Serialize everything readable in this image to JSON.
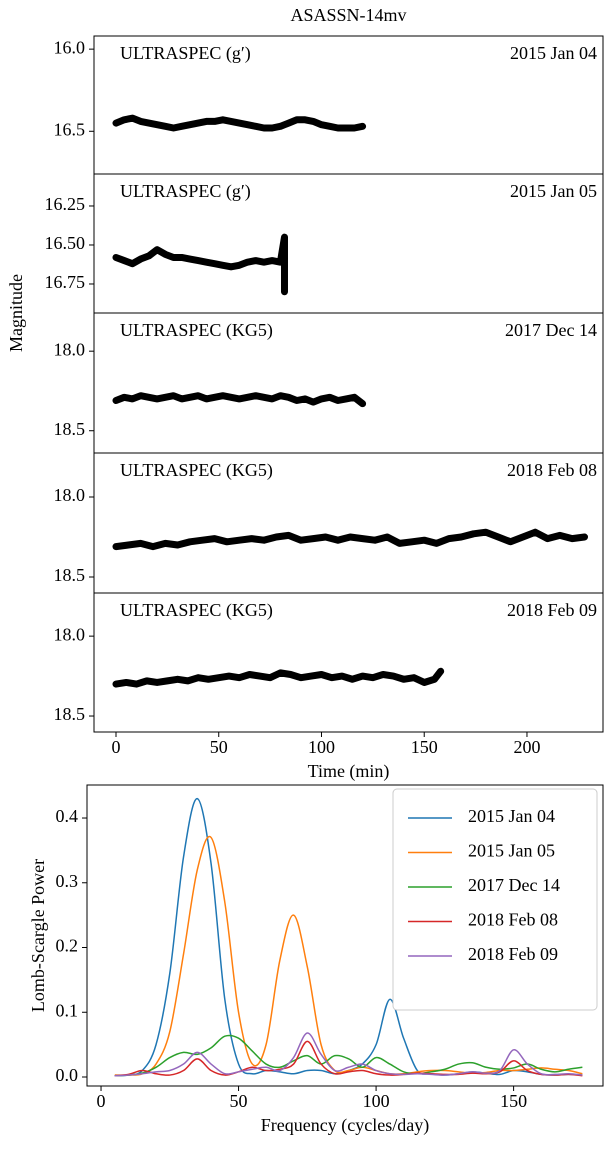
{
  "chart_data": [
    {
      "type": "scatter",
      "title": "ASASSN-14mv",
      "label": "ULTRASPEC (g′)",
      "date": "2015 Jan 04",
      "color": "#000000",
      "x": [
        0,
        4,
        8,
        12,
        16,
        20,
        24,
        28,
        32,
        36,
        40,
        44,
        48,
        52,
        56,
        60,
        64,
        68,
        72,
        76,
        80,
        84,
        88,
        92,
        96,
        100,
        104,
        108,
        112,
        116,
        120
      ],
      "values": [
        16.45,
        16.43,
        16.42,
        16.44,
        16.45,
        16.46,
        16.47,
        16.48,
        16.47,
        16.46,
        16.45,
        16.44,
        16.44,
        16.43,
        16.44,
        16.45,
        16.46,
        16.47,
        16.48,
        16.48,
        16.47,
        16.45,
        16.43,
        16.43,
        16.44,
        16.46,
        16.47,
        16.48,
        16.48,
        16.48,
        16.47
      ],
      "xlim": [
        -10.7,
        237
      ],
      "ylim": [
        16.76,
        15.92
      ],
      "yticks": [
        {
          "value": 16,
          "label": "16.0"
        },
        16.5
      ]
    },
    {
      "type": "scatter",
      "label": "ULTRASPEC (g′)",
      "date": "2015 Jan 05",
      "color": "#000000",
      "x": [
        0,
        4,
        8,
        12,
        16,
        20,
        24,
        28,
        32,
        36,
        40,
        44,
        48,
        52,
        56,
        60,
        64,
        68,
        72,
        76,
        80,
        82,
        82
      ],
      "values": [
        16.58,
        16.6,
        16.62,
        16.59,
        16.57,
        16.53,
        16.56,
        16.58,
        16.58,
        16.59,
        16.6,
        16.61,
        16.62,
        16.63,
        16.64,
        16.63,
        16.61,
        16.6,
        16.61,
        16.6,
        16.61,
        16.45,
        16.8
      ],
      "xlim": [
        -10.7,
        237
      ],
      "ylim": [
        16.936,
        16.045
      ],
      "yticks": [
        16.25,
        {
          "value": 16.5,
          "label": "16.50"
        },
        16.75
      ]
    },
    {
      "type": "scatter",
      "label": "ULTRASPEC (KG5)",
      "date": "2017 Dec 14",
      "color": "#000000",
      "y_label": "Magnitude",
      "x": [
        0,
        4,
        8,
        12,
        16,
        20,
        24,
        28,
        32,
        36,
        40,
        44,
        48,
        52,
        56,
        60,
        64,
        68,
        72,
        76,
        80,
        84,
        88,
        92,
        96,
        100,
        104,
        108,
        112,
        116,
        120
      ],
      "values": [
        18.31,
        18.29,
        18.3,
        18.28,
        18.29,
        18.3,
        18.29,
        18.28,
        18.3,
        18.29,
        18.28,
        18.3,
        18.29,
        18.28,
        18.29,
        18.3,
        18.29,
        18.28,
        18.29,
        18.3,
        18.28,
        18.29,
        18.31,
        18.3,
        18.32,
        18.3,
        18.29,
        18.31,
        18.3,
        18.29,
        18.33
      ],
      "xlim": [
        -10.7,
        237
      ],
      "ylim": [
        18.64,
        17.76
      ],
      "yticks": [
        {
          "value": 18,
          "label": "18.0"
        },
        18.5
      ]
    },
    {
      "type": "scatter",
      "label": "ULTRASPEC (KG5)",
      "date": "2018 Feb 08",
      "color": "#000000",
      "x": [
        0,
        6,
        12,
        18,
        24,
        30,
        36,
        42,
        48,
        54,
        60,
        66,
        72,
        78,
        84,
        90,
        96,
        102,
        108,
        114,
        120,
        126,
        132,
        138,
        144,
        150,
        156,
        162,
        168,
        174,
        180,
        186,
        192,
        198,
        204,
        210,
        216,
        222,
        228
      ],
      "values": [
        18.31,
        18.3,
        18.29,
        18.31,
        18.29,
        18.3,
        18.28,
        18.27,
        18.26,
        18.28,
        18.27,
        18.26,
        18.27,
        18.25,
        18.24,
        18.27,
        18.26,
        18.25,
        18.27,
        18.25,
        18.26,
        18.27,
        18.25,
        18.29,
        18.28,
        18.27,
        18.29,
        18.26,
        18.25,
        18.23,
        18.22,
        18.25,
        18.28,
        18.25,
        18.22,
        18.26,
        18.24,
        18.26,
        18.25
      ],
      "xlim": [
        -10.7,
        237
      ],
      "ylim": [
        18.6,
        17.725
      ],
      "yticks": [
        {
          "value": 18,
          "label": "18.0"
        },
        18.5
      ]
    },
    {
      "type": "scatter",
      "label": "ULTRASPEC (KG5)",
      "date": "2018 Feb 09",
      "color": "#000000",
      "x_label": "Time (min)",
      "xticks": [
        0,
        50,
        100,
        150,
        200
      ],
      "x": [
        0,
        5,
        10,
        15,
        20,
        25,
        30,
        35,
        40,
        45,
        50,
        55,
        60,
        65,
        70,
        75,
        80,
        85,
        90,
        95,
        100,
        105,
        110,
        115,
        120,
        125,
        130,
        135,
        140,
        145,
        150,
        155,
        158
      ],
      "values": [
        18.3,
        18.29,
        18.3,
        18.28,
        18.29,
        18.28,
        18.27,
        18.28,
        18.26,
        18.27,
        18.26,
        18.25,
        18.26,
        18.24,
        18.25,
        18.26,
        18.23,
        18.24,
        18.26,
        18.25,
        18.24,
        18.26,
        18.25,
        18.27,
        18.25,
        18.26,
        18.24,
        18.25,
        18.27,
        18.26,
        18.29,
        18.27,
        18.22
      ],
      "xlim": [
        -10.7,
        237
      ],
      "ylim": [
        18.6,
        17.73
      ],
      "yticks": [
        {
          "value": 18,
          "label": "18.0"
        },
        18.5
      ]
    },
    {
      "type": "line",
      "x_label": "Frequency (cycles/day)",
      "y_label": "Lomb-Scargle Power",
      "legend": "upper right",
      "x": [
        5,
        10,
        15,
        20,
        25,
        30,
        35,
        40,
        45,
        50,
        55,
        60,
        65,
        70,
        75,
        80,
        85,
        90,
        95,
        100,
        105,
        110,
        115,
        120,
        125,
        130,
        135,
        140,
        145,
        150,
        155,
        160,
        165,
        170,
        175
      ],
      "series": [
        {
          "name": "2015 Jan 04",
          "color": "#1f77b4",
          "values": [
            0.002,
            0.003,
            0.01,
            0.05,
            0.16,
            0.34,
            0.43,
            0.33,
            0.12,
            0.02,
            0.005,
            0.01,
            0.008,
            0.005,
            0.01,
            0.01,
            0.005,
            0.01,
            0.02,
            0.05,
            0.12,
            0.06,
            0.01,
            0.005,
            0.003,
            0.005,
            0.008,
            0.006,
            0.004,
            0.01,
            0.008,
            0.004,
            0.003,
            0.004,
            0.003
          ]
        },
        {
          "name": "2015 Jan 05",
          "color": "#ff7f0e",
          "values": [
            0.003,
            0.003,
            0.005,
            0.02,
            0.07,
            0.19,
            0.32,
            0.37,
            0.27,
            0.1,
            0.02,
            0.05,
            0.18,
            0.25,
            0.17,
            0.05,
            0.01,
            0.01,
            0.015,
            0.01,
            0.005,
            0.005,
            0.008,
            0.01,
            0.01,
            0.008,
            0.006,
            0.007,
            0.01,
            0.01,
            0.012,
            0.014,
            0.012,
            0.01,
            0.005
          ]
        },
        {
          "name": "2017 Dec 14",
          "color": "#2ca02c",
          "values": [
            0.002,
            0.003,
            0.006,
            0.015,
            0.03,
            0.038,
            0.035,
            0.045,
            0.063,
            0.06,
            0.04,
            0.02,
            0.015,
            0.025,
            0.033,
            0.02,
            0.033,
            0.028,
            0.015,
            0.03,
            0.02,
            0.008,
            0.005,
            0.008,
            0.012,
            0.02,
            0.022,
            0.015,
            0.012,
            0.014,
            0.02,
            0.012,
            0.008,
            0.012,
            0.015
          ]
        },
        {
          "name": "2018 Feb 08",
          "color": "#d62728",
          "values": [
            0.002,
            0.004,
            0.01,
            0.005,
            0.003,
            0.01,
            0.028,
            0.01,
            0.003,
            0.008,
            0.015,
            0.01,
            0.012,
            0.02,
            0.055,
            0.02,
            0.005,
            0.008,
            0.01,
            0.005,
            0.003,
            0.004,
            0.006,
            0.005,
            0.004,
            0.004,
            0.006,
            0.005,
            0.008,
            0.025,
            0.01,
            0.004,
            0.003,
            0.004,
            0.002
          ]
        },
        {
          "name": "2018 Feb 09",
          "color": "#9467bd",
          "values": [
            0.002,
            0.003,
            0.005,
            0.008,
            0.01,
            0.02,
            0.038,
            0.02,
            0.005,
            0.008,
            0.012,
            0.015,
            0.01,
            0.03,
            0.068,
            0.035,
            0.01,
            0.015,
            0.02,
            0.01,
            0.005,
            0.004,
            0.005,
            0.004,
            0.003,
            0.005,
            0.008,
            0.006,
            0.01,
            0.042,
            0.02,
            0.005,
            0.004,
            0.005,
            0.003
          ]
        }
      ],
      "xlim": [
        -5.1,
        182.5
      ],
      "ylim": [
        -0.0139,
        0.451
      ],
      "xticks": [
        0,
        50,
        100,
        150
      ],
      "yticks": [
        {
          "value": 0,
          "label": "0.0"
        },
        0.1,
        0.2,
        0.3,
        0.4
      ]
    }
  ]
}
